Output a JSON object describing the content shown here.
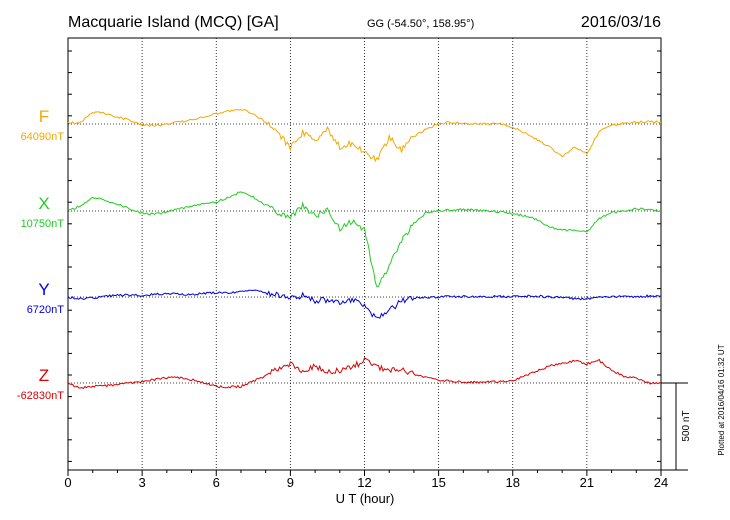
{
  "header": {
    "station": "Macquarie Island (MCQ)  [GA]",
    "coords": "GG (-54.50°, 158.95°)",
    "date": "2016/03/16"
  },
  "footer": {
    "plotted": "Plotted at 2016/04/16 01:32 UT"
  },
  "chart_data": {
    "type": "line",
    "xlabel": "U T (hour)",
    "xlim": [
      0,
      24
    ],
    "x_ticks": [
      0,
      3,
      6,
      9,
      12,
      15,
      18,
      21,
      24
    ],
    "scale_bar": {
      "label": "500 nT",
      "value_nT": 500
    },
    "grid": "dotted",
    "x": [
      0,
      0.5,
      1,
      1.5,
      2,
      2.5,
      3,
      3.5,
      4,
      4.5,
      5,
      5.5,
      6,
      6.5,
      7,
      7.5,
      8,
      8.5,
      9,
      9.5,
      10,
      10.5,
      11,
      11.5,
      12,
      12.5,
      13,
      13.5,
      14,
      14.5,
      15,
      15.5,
      16,
      16.5,
      17,
      17.5,
      18,
      18.5,
      19,
      19.5,
      20,
      20.5,
      21,
      21.5,
      22,
      22.5,
      23,
      23.5,
      24
    ],
    "series": [
      {
        "name": "F",
        "baseline_label": "64090nT",
        "color": "#f5a800",
        "values": [
          64095,
          64100,
          64160,
          64150,
          64130,
          64110,
          64090,
          64080,
          64090,
          64100,
          64115,
          64130,
          64150,
          64165,
          64175,
          64150,
          64100,
          64040,
          63950,
          64040,
          64000,
          64060,
          63960,
          63980,
          63930,
          63880,
          64010,
          63940,
          64020,
          64060,
          64090,
          64100,
          64095,
          64090,
          64090,
          64090,
          64070,
          64040,
          64000,
          63960,
          63900,
          63960,
          63920,
          64050,
          64080,
          64095,
          64100,
          64105,
          64100
        ]
      },
      {
        "name": "X",
        "baseline_label": "10750nT",
        "color": "#22cc22",
        "values": [
          10750,
          10780,
          10830,
          10810,
          10790,
          10760,
          10740,
          10730,
          10745,
          10760,
          10780,
          10790,
          10800,
          10830,
          10860,
          10830,
          10780,
          10740,
          10710,
          10780,
          10720,
          10760,
          10650,
          10690,
          10640,
          10300,
          10430,
          10580,
          10680,
          10740,
          10750,
          10755,
          10760,
          10755,
          10750,
          10745,
          10735,
          10720,
          10700,
          10660,
          10640,
          10640,
          10630,
          10710,
          10740,
          10750,
          10765,
          10760,
          10750
        ]
      },
      {
        "name": "Y",
        "baseline_label": "6720nT",
        "color": "#0000dd",
        "values": [
          6720,
          6710,
          6715,
          6725,
          6730,
          6730,
          6730,
          6735,
          6740,
          6735,
          6735,
          6740,
          6745,
          6745,
          6750,
          6760,
          6745,
          6735,
          6710,
          6730,
          6700,
          6705,
          6690,
          6700,
          6680,
          6590,
          6640,
          6700,
          6715,
          6718,
          6720,
          6722,
          6722,
          6722,
          6722,
          6722,
          6722,
          6725,
          6725,
          6720,
          6720,
          6710,
          6710,
          6720,
          6722,
          6722,
          6722,
          6725,
          6725
        ]
      },
      {
        "name": "Z",
        "baseline_label": "-62830nT",
        "color": "#dd0000",
        "values": [
          -62830,
          -62860,
          -62850,
          -62845,
          -62840,
          -62830,
          -62820,
          -62810,
          -62800,
          -62800,
          -62810,
          -62830,
          -62850,
          -62855,
          -62850,
          -62820,
          -62790,
          -62750,
          -62720,
          -62770,
          -62730,
          -62770,
          -62760,
          -62740,
          -62700,
          -62740,
          -62760,
          -62750,
          -62780,
          -62800,
          -62815,
          -62820,
          -62825,
          -62825,
          -62825,
          -62822,
          -62815,
          -62790,
          -62760,
          -62730,
          -62720,
          -62700,
          -62720,
          -62700,
          -62760,
          -62790,
          -62800,
          -62830,
          -62830
        ]
      }
    ]
  }
}
